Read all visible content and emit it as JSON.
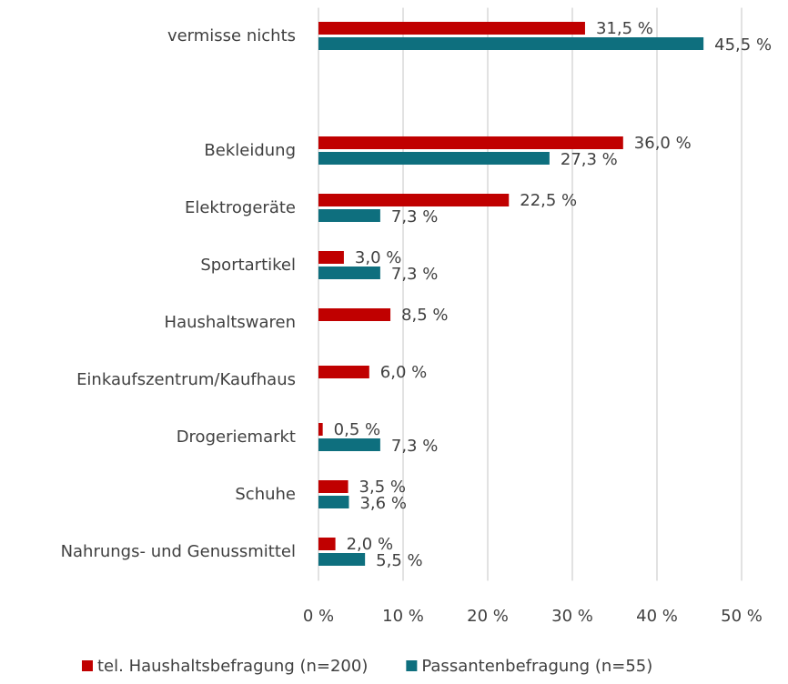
{
  "chart_data": {
    "type": "bar",
    "orientation": "horizontal",
    "categories": [
      "vermisse nichts",
      null,
      "Bekleidung",
      "Elektrogeräte",
      "Sportartikel",
      "Haushaltswaren",
      "Einkaufszentrum/Kaufhaus",
      "Drogeriemarkt",
      "Schuhe",
      "Nahrungs- und Genussmittel"
    ],
    "series": [
      {
        "name": "tel. Haushaltsbefragung (n=200)",
        "color": "#c00000",
        "values": [
          31.5,
          null,
          36.0,
          22.5,
          3.0,
          8.5,
          6.0,
          0.5,
          3.5,
          2.0
        ],
        "value_labels": [
          "31,5 %",
          null,
          "36,0 %",
          "22,5 %",
          "3,0 %",
          "8,5 %",
          "6,0 %",
          "0,5 %",
          "3,5 %",
          "2,0 %"
        ]
      },
      {
        "name": "Passantenbefragung (n=55)",
        "color": "#0e6f7e",
        "values": [
          45.5,
          null,
          27.3,
          7.3,
          7.3,
          null,
          null,
          7.3,
          3.6,
          5.5
        ],
        "value_labels": [
          "45,5 %",
          null,
          "27,3 %",
          "7,3 %",
          "7,3 %",
          null,
          null,
          "7,3 %",
          "3,6 %",
          "5,5 %"
        ]
      }
    ],
    "xlim": [
      0,
      50
    ],
    "xticks": [
      {
        "value": 0,
        "label": "0 %"
      },
      {
        "value": 10,
        "label": "10 %"
      },
      {
        "value": 20,
        "label": "20 %"
      },
      {
        "value": 30,
        "label": "30 %"
      },
      {
        "value": 40,
        "label": "40 %"
      },
      {
        "value": 50,
        "label": "50 %"
      }
    ],
    "grid": true,
    "legend": "bottom"
  }
}
